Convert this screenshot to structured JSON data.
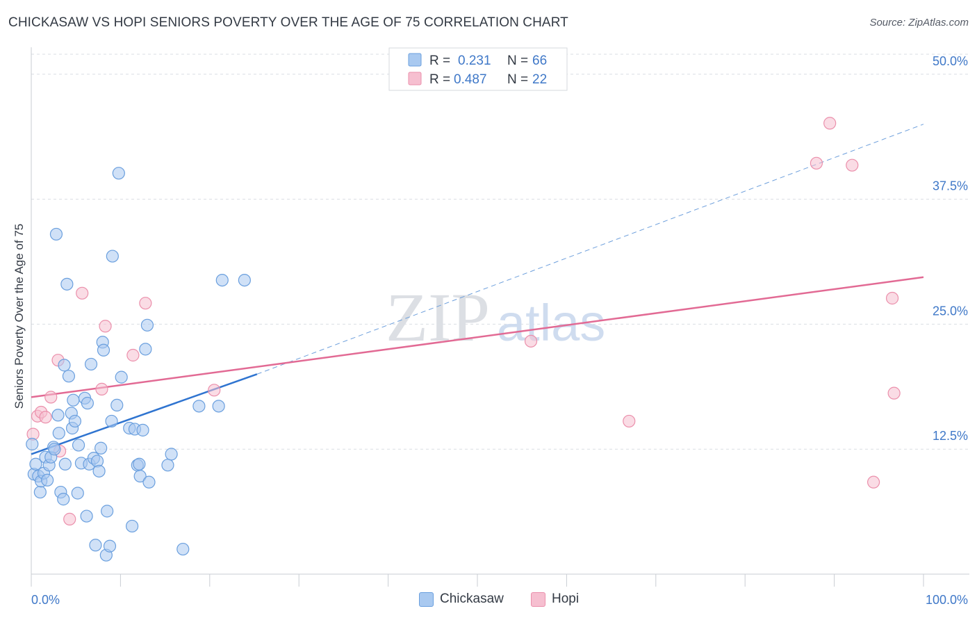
{
  "header": {
    "title": "CHICKASAW VS HOPI SENIORS POVERTY OVER THE AGE OF 75 CORRELATION CHART",
    "source": "Source: ZipAtlas.com"
  },
  "watermark": {
    "zip": "ZIP",
    "atlas": "atlas"
  },
  "colors": {
    "chickasaw_fill": "#a9c9f0",
    "chickasaw_stroke": "#6a9fde",
    "chickasaw_line": "#2f74d0",
    "hopi_fill": "#f6bfd0",
    "hopi_stroke": "#eb8fab",
    "hopi_line": "#e26a94",
    "axis_label": "#3f78c8",
    "grid": "#d9dde3"
  },
  "chart_data": {
    "type": "scatter",
    "title": "CHICKASAW VS HOPI SENIORS POVERTY OVER THE AGE OF 75 CORRELATION CHART",
    "xlabel": "",
    "ylabel": "Seniors Poverty Over the Age of 75",
    "xlim": [
      0,
      100
    ],
    "ylim": [
      0,
      52
    ],
    "x_tick_labels": [
      "0.0%",
      "100.0%"
    ],
    "y_ticks": [
      12.5,
      25.0,
      37.5,
      50.0
    ],
    "y_tick_labels": [
      "12.5%",
      "25.0%",
      "37.5%",
      "50.0%"
    ],
    "grid": true,
    "legend": [
      {
        "name": "Chickasaw",
        "r_label": "R =",
        "r_value": "0.231",
        "n_label": "N =",
        "n_value": "66"
      },
      {
        "name": "Hopi",
        "r_label": "R =",
        "r_value": "0.487",
        "n_label": "N =",
        "n_value": "22"
      }
    ],
    "series": [
      {
        "name": "Chickasaw",
        "trend": {
          "x0": 0,
          "y0": 12.0,
          "x1": 25.3,
          "y1": 20.0,
          "dashed_to_x": 100,
          "dashed_to_y": 45.0
        },
        "points": [
          [
            0.1,
            13.0
          ],
          [
            0.3,
            10.0
          ],
          [
            0.5,
            11.0
          ],
          [
            0.8,
            9.8
          ],
          [
            1.0,
            8.2
          ],
          [
            1.1,
            9.3
          ],
          [
            1.4,
            10.1
          ],
          [
            1.6,
            11.7
          ],
          [
            1.8,
            9.4
          ],
          [
            2.0,
            10.9
          ],
          [
            2.2,
            11.7
          ],
          [
            2.5,
            12.7
          ],
          [
            2.6,
            12.5
          ],
          [
            2.8,
            34.0
          ],
          [
            3.0,
            15.9
          ],
          [
            3.1,
            14.1
          ],
          [
            3.3,
            8.2
          ],
          [
            3.6,
            7.5
          ],
          [
            3.7,
            20.9
          ],
          [
            3.8,
            11.0
          ],
          [
            4.0,
            29.0
          ],
          [
            4.2,
            19.8
          ],
          [
            4.5,
            16.1
          ],
          [
            4.6,
            14.6
          ],
          [
            4.7,
            17.4
          ],
          [
            4.9,
            15.3
          ],
          [
            5.2,
            8.1
          ],
          [
            5.3,
            12.9
          ],
          [
            5.6,
            11.1
          ],
          [
            6.0,
            17.6
          ],
          [
            6.2,
            5.8
          ],
          [
            6.3,
            17.1
          ],
          [
            6.5,
            11.0
          ],
          [
            6.7,
            21.0
          ],
          [
            7.0,
            11.6
          ],
          [
            7.2,
            2.9
          ],
          [
            7.4,
            11.3
          ],
          [
            7.6,
            10.3
          ],
          [
            7.8,
            12.6
          ],
          [
            8.0,
            23.2
          ],
          [
            8.1,
            22.4
          ],
          [
            8.4,
            1.9
          ],
          [
            8.5,
            6.3
          ],
          [
            8.8,
            2.8
          ],
          [
            9.0,
            15.3
          ],
          [
            9.1,
            31.8
          ],
          [
            9.6,
            16.9
          ],
          [
            9.8,
            40.1
          ],
          [
            10.1,
            19.7
          ],
          [
            11.0,
            14.6
          ],
          [
            11.3,
            4.8
          ],
          [
            11.6,
            14.5
          ],
          [
            11.9,
            10.9
          ],
          [
            12.1,
            11.0
          ],
          [
            12.2,
            9.8
          ],
          [
            12.5,
            14.4
          ],
          [
            12.8,
            22.5
          ],
          [
            13.0,
            24.9
          ],
          [
            13.2,
            9.2
          ],
          [
            15.3,
            10.9
          ],
          [
            15.7,
            12.0
          ],
          [
            17.0,
            2.5
          ],
          [
            18.8,
            16.8
          ],
          [
            21.0,
            16.8
          ],
          [
            21.4,
            29.4
          ],
          [
            23.9,
            29.4
          ]
        ]
      },
      {
        "name": "Hopi",
        "trend": {
          "x0": 0,
          "y0": 17.7,
          "x1": 100,
          "y1": 29.7
        },
        "points": [
          [
            0.2,
            14.0
          ],
          [
            0.7,
            15.8
          ],
          [
            1.1,
            16.2
          ],
          [
            1.6,
            15.7
          ],
          [
            2.2,
            17.7
          ],
          [
            3.0,
            21.4
          ],
          [
            3.2,
            12.3
          ],
          [
            4.3,
            5.5
          ],
          [
            5.7,
            28.1
          ],
          [
            7.9,
            18.5
          ],
          [
            8.3,
            24.8
          ],
          [
            11.4,
            21.9
          ],
          [
            12.8,
            27.1
          ],
          [
            20.5,
            18.4
          ],
          [
            56.0,
            23.3
          ],
          [
            67.0,
            15.3
          ],
          [
            88.0,
            41.1
          ],
          [
            89.5,
            45.1
          ],
          [
            92.0,
            40.9
          ],
          [
            94.4,
            9.2
          ],
          [
            96.5,
            27.6
          ],
          [
            96.7,
            18.1
          ]
        ]
      }
    ]
  }
}
